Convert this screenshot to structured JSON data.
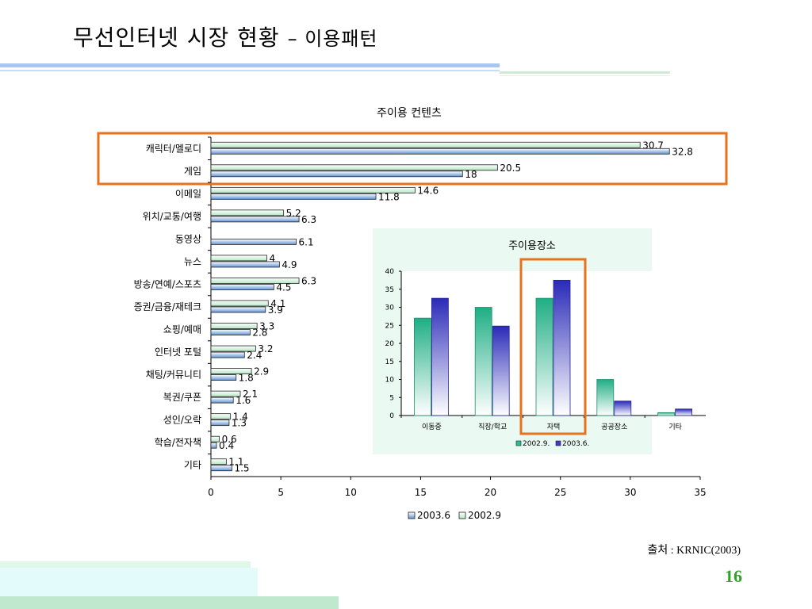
{
  "slide": {
    "title": "무선인터넷 시장 현황",
    "title_suffix": "– 이용패턴",
    "source": "출처 : KRNIC(2003)",
    "page_number": "16"
  },
  "chart_data": [
    {
      "type": "bar",
      "orientation": "horizontal",
      "title": "주이용 컨텐츠",
      "categories": [
        "캐릭터/멜로디",
        "게임",
        "이메일",
        "위치/교통/여행",
        "동영상",
        "뉴스",
        "방송/연예/스포츠",
        "증권/금융/재테크",
        "쇼핑/예매",
        "인터넷 포털",
        "채팅/커뮤니티",
        "복권/쿠폰",
        "성인/오락",
        "학습/전자책",
        "기타"
      ],
      "series": [
        {
          "name": "2002.9",
          "values": [
            30.7,
            20.5,
            14.6,
            5.2,
            null,
            4,
            6.3,
            4.1,
            3.3,
            3.2,
            2.9,
            2.1,
            1.4,
            0.6,
            1.1
          ],
          "color": "#cdeed8"
        },
        {
          "name": "2003.6",
          "values": [
            32.8,
            18,
            11.8,
            6.3,
            6.1,
            4.9,
            4.5,
            3.9,
            2.8,
            2.4,
            1.8,
            1.6,
            1.3,
            0.4,
            1.5
          ],
          "color": "#6f9fd8"
        }
      ],
      "x_ticks": [
        "0",
        "5",
        "10",
        "15",
        "20",
        "25",
        "30",
        "35"
      ],
      "xlim": [
        0,
        35
      ],
      "legend": [
        "2003.6",
        "2002.9"
      ],
      "legend_position": "bottom",
      "highlight_color": "#e8721c"
    },
    {
      "type": "bar",
      "orientation": "vertical",
      "title": "주이용장소",
      "categories": [
        "이동중",
        "직장/학교",
        "자택",
        "공공장소",
        "기타"
      ],
      "series": [
        {
          "name": "2002.9.",
          "values": [
            27,
            30,
            32.5,
            10,
            0.8
          ],
          "color": "#2bbf8f"
        },
        {
          "name": "2003.6.",
          "values": [
            32.5,
            24.8,
            37.5,
            4,
            1.8
          ],
          "color": "#3c3cc8"
        }
      ],
      "y_ticks": [
        "0",
        "5",
        "10",
        "15",
        "20",
        "25",
        "30",
        "35",
        "40"
      ],
      "ylim": [
        0,
        40
      ],
      "legend": [
        "2002.9.",
        "2003.6."
      ],
      "legend_position": "bottom",
      "panel_color": "#eafaf3",
      "highlight_color": "#e8721c"
    }
  ]
}
